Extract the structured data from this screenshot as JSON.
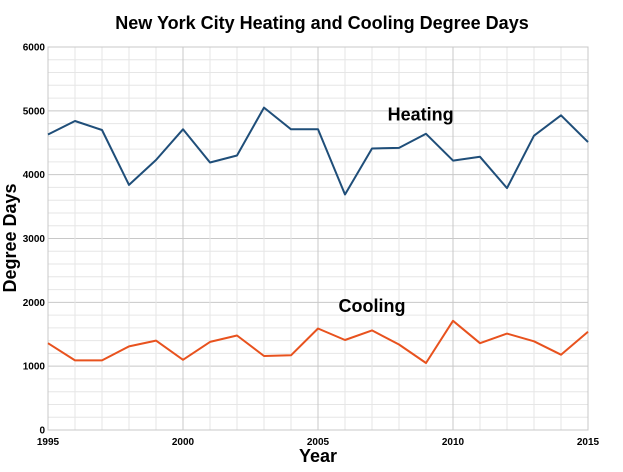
{
  "chart_data": {
    "type": "line",
    "title": "New York City Heating and Cooling Degree Days",
    "xlabel": "Year",
    "ylabel": "Degree Days",
    "xlim": [
      1995,
      2015
    ],
    "ylim": [
      0,
      6000
    ],
    "x_ticks": [
      1995,
      2000,
      2005,
      2010,
      2015
    ],
    "y_ticks": [
      0,
      1000,
      2000,
      3000,
      4000,
      5000,
      6000
    ],
    "grid": true,
    "legend": "none",
    "x": [
      1995,
      1996,
      1997,
      1998,
      1999,
      2000,
      2001,
      2002,
      2003,
      2004,
      2005,
      2006,
      2007,
      2008,
      2009,
      2010,
      2011,
      2012,
      2013,
      2014,
      2015
    ],
    "series": [
      {
        "name": "Heating",
        "color": "#1f4e79",
        "label_at": [
          2008.8,
          4850
        ],
        "values": [
          4630,
          4840,
          4700,
          3840,
          4230,
          4710,
          4190,
          4300,
          5050,
          4710,
          4710,
          3690,
          4410,
          4420,
          4640,
          4220,
          4280,
          3790,
          4610,
          4930,
          4510
        ]
      },
      {
        "name": "Cooling",
        "color": "#e8521e",
        "label_at": [
          2007.0,
          1850
        ],
        "values": [
          1360,
          1090,
          1090,
          1310,
          1400,
          1100,
          1380,
          1480,
          1160,
          1170,
          1590,
          1410,
          1560,
          1340,
          1050,
          1710,
          1360,
          1510,
          1390,
          1180,
          1540
        ]
      }
    ]
  }
}
